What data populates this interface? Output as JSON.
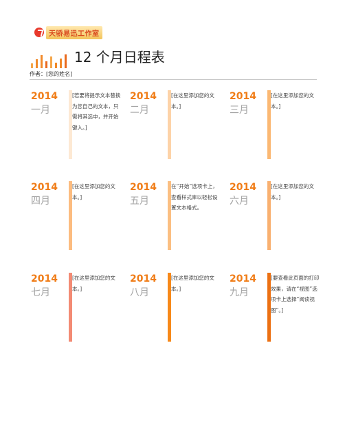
{
  "logo": {
    "text": "天骄易迅工作室",
    "icon": "flame-logo-icon"
  },
  "header": {
    "bar_colors": [
      "#f5a64a",
      "#f08a2a",
      "#f28a2b",
      "#e96a1e",
      "#f5a64a",
      "#f08a2a",
      "#f28a2b",
      "#e96a1e"
    ],
    "title": "12 个月日程表",
    "author_label": "作者：",
    "author_name": "[您的姓名]"
  },
  "months": [
    {
      "year": "2014",
      "name": "一月",
      "color": "#fde9d4",
      "note": "[若要将提示文本替换为您自己的文本，只需将其选中，并开始键入。]"
    },
    {
      "year": "2014",
      "name": "二月",
      "color": "#fdd3a8",
      "note": "[在这里添加您的文本。]"
    },
    {
      "year": "2014",
      "name": "三月",
      "color": "#fbb873",
      "note": "[在这里添加您的文本。]"
    },
    {
      "year": "2014",
      "name": "四月",
      "color": "#fcbc80",
      "note": "[在这里添加您的文本。]"
    },
    {
      "year": "2014",
      "name": "五月",
      "color": "#fbbf82",
      "note": "在“开始”选项卡上，查看样式库以轻松设置文本格式。"
    },
    {
      "year": "2014",
      "name": "六月",
      "color": "#f9b070",
      "note": "[在这里添加您的文本。]"
    },
    {
      "year": "2014",
      "name": "七月",
      "color": "#f38b74",
      "note": "[在这里添加您的文本。]"
    },
    {
      "year": "2014",
      "name": "八月",
      "color": "#f7891a",
      "note": "[在这里添加您的文本。]"
    },
    {
      "year": "2014",
      "name": "九月",
      "color": "#ec7012",
      "note": "[要查看此页面的打印效果，请在“视图”选项卡上选择“阅读视图”。]"
    }
  ]
}
